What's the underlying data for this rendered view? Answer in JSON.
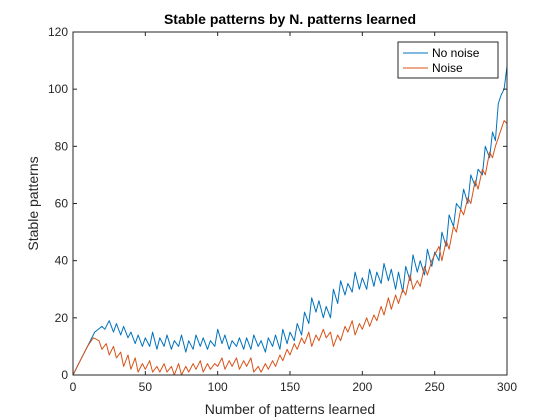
{
  "chart_data": {
    "type": "line",
    "title": "Stable patterns by N. patterns learned",
    "xlabel": "Number of patterns learned",
    "ylabel": "Stable patterns",
    "xlim": [
      0,
      300
    ],
    "ylim": [
      0,
      120
    ],
    "xticks": [
      0,
      50,
      100,
      150,
      200,
      250,
      300
    ],
    "yticks": [
      0,
      20,
      40,
      60,
      80,
      100,
      120
    ],
    "grid": false,
    "legend_position": "top-right",
    "series": [
      {
        "name": "No noise",
        "color": "#0072BD",
        "x": [
          0,
          5,
          10,
          15,
          20,
          22,
          25,
          28,
          30,
          33,
          35,
          38,
          40,
          43,
          45,
          48,
          50,
          53,
          55,
          58,
          60,
          63,
          65,
          68,
          70,
          73,
          75,
          78,
          80,
          83,
          85,
          88,
          90,
          93,
          95,
          98,
          100,
          103,
          105,
          108,
          110,
          113,
          115,
          118,
          120,
          123,
          125,
          128,
          130,
          133,
          135,
          138,
          140,
          143,
          145,
          148,
          150,
          153,
          155,
          158,
          160,
          163,
          165,
          168,
          170,
          173,
          175,
          178,
          180,
          183,
          185,
          188,
          190,
          193,
          195,
          198,
          200,
          203,
          205,
          208,
          210,
          213,
          215,
          218,
          220,
          223,
          225,
          228,
          230,
          233,
          235,
          238,
          240,
          243,
          245,
          248,
          250,
          253,
          255,
          258,
          260,
          263,
          265,
          268,
          270,
          273,
          275,
          278,
          280,
          283,
          285,
          288,
          290,
          292,
          294,
          296,
          298,
          300
        ],
        "y": [
          0,
          5,
          10,
          15,
          17,
          16,
          19,
          15,
          18,
          14,
          17,
          13,
          15,
          11,
          14,
          10,
          13,
          10,
          15,
          9,
          13,
          10,
          14,
          9,
          12,
          10,
          14,
          8,
          12,
          9,
          14,
          10,
          13,
          9,
          12,
          10,
          16,
          11,
          14,
          9,
          12,
          10,
          13,
          9,
          13,
          9,
          14,
          10,
          12,
          8,
          13,
          10,
          14,
          9,
          16,
          11,
          15,
          12,
          18,
          14,
          22,
          18,
          27,
          22,
          26,
          20,
          24,
          20,
          30,
          25,
          33,
          28,
          32,
          29,
          36,
          30,
          34,
          30,
          37,
          31,
          36,
          32,
          39,
          33,
          37,
          30,
          36,
          29,
          38,
          33,
          42,
          36,
          40,
          35,
          44,
          38,
          43,
          40,
          50,
          45,
          56,
          52,
          60,
          58,
          65,
          60,
          70,
          66,
          72,
          70,
          80,
          76,
          85,
          82,
          95,
          98,
          100,
          108
        ]
      },
      {
        "name": "Noise",
        "color": "#D95319",
        "x": [
          0,
          5,
          10,
          14,
          18,
          20,
          23,
          25,
          28,
          30,
          33,
          35,
          38,
          40,
          43,
          45,
          48,
          50,
          53,
          55,
          58,
          60,
          63,
          65,
          68,
          70,
          73,
          75,
          78,
          80,
          83,
          85,
          88,
          90,
          93,
          95,
          98,
          100,
          103,
          105,
          108,
          110,
          113,
          115,
          118,
          120,
          123,
          125,
          128,
          130,
          133,
          135,
          138,
          140,
          143,
          145,
          148,
          150,
          153,
          155,
          158,
          160,
          163,
          165,
          168,
          170,
          173,
          175,
          178,
          180,
          183,
          185,
          188,
          190,
          193,
          195,
          198,
          200,
          203,
          205,
          208,
          210,
          213,
          215,
          218,
          220,
          223,
          225,
          228,
          230,
          233,
          235,
          238,
          240,
          243,
          245,
          248,
          250,
          253,
          255,
          258,
          260,
          263,
          265,
          268,
          270,
          273,
          275,
          278,
          280,
          283,
          285,
          288,
          290,
          292,
          294,
          296,
          298,
          300
        ],
        "y": [
          0,
          5,
          10,
          13,
          12,
          9,
          11,
          7,
          10,
          6,
          8,
          3,
          7,
          2,
          6,
          1,
          4,
          2,
          5,
          1,
          3,
          1,
          4,
          1,
          3,
          0,
          4,
          0,
          3,
          1,
          4,
          2,
          5,
          1,
          4,
          2,
          4,
          3,
          6,
          2,
          5,
          3,
          6,
          2,
          5,
          3,
          6,
          1,
          3,
          1,
          4,
          2,
          5,
          3,
          7,
          5,
          9,
          7,
          11,
          9,
          13,
          11,
          15,
          10,
          14,
          12,
          16,
          13,
          15,
          10,
          14,
          12,
          17,
          15,
          19,
          14,
          18,
          16,
          20,
          17,
          21,
          19,
          24,
          21,
          27,
          23,
          28,
          25,
          30,
          28,
          35,
          30,
          33,
          31,
          38,
          35,
          40,
          42,
          45,
          40,
          47,
          44,
          52,
          50,
          58,
          56,
          62,
          60,
          68,
          65,
          72,
          70,
          78,
          76,
          80,
          83,
          86,
          89,
          88
        ]
      }
    ]
  }
}
